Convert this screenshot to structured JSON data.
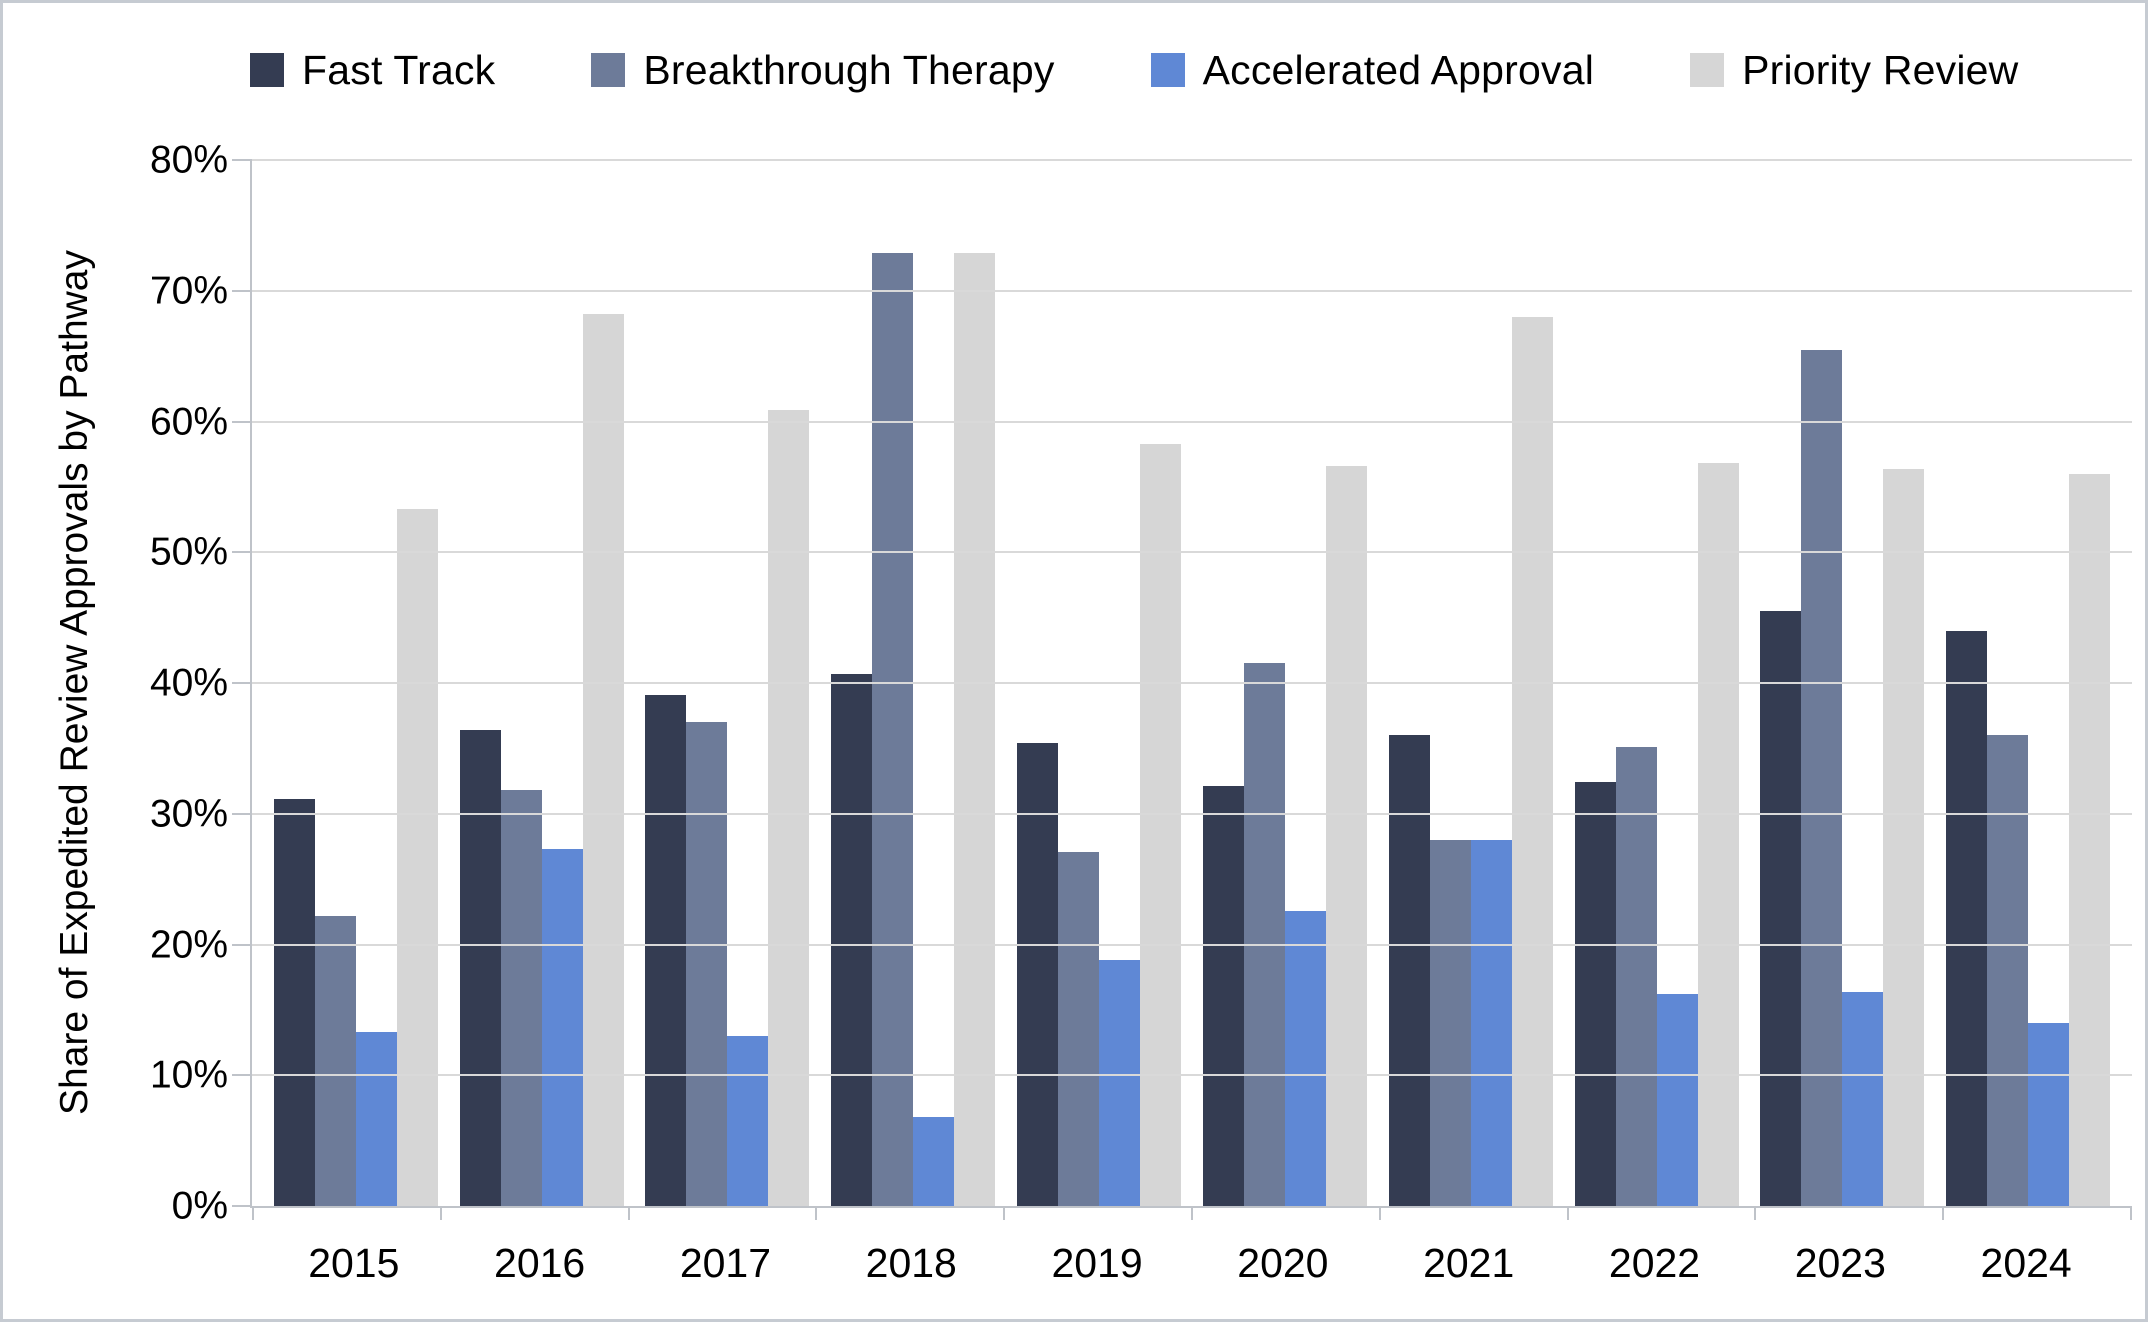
{
  "chart_data": {
    "type": "bar",
    "title": "",
    "xlabel": "",
    "ylabel": "Share of Expedited Review Approvals by Pathway",
    "categories": [
      "2015",
      "2016",
      "2017",
      "2018",
      "2019",
      "2020",
      "2021",
      "2022",
      "2023",
      "2024"
    ],
    "series": [
      {
        "name": "Fast Track",
        "color": "#343c52",
        "values": [
          31.1,
          36.4,
          39.1,
          40.7,
          35.4,
          32.1,
          36.0,
          32.4,
          45.5,
          44.0
        ]
      },
      {
        "name": "Breakthrough Therapy",
        "color": "#6d7b99",
        "values": [
          22.2,
          31.8,
          37.0,
          72.9,
          27.1,
          41.5,
          28.0,
          35.1,
          65.5,
          36.0
        ]
      },
      {
        "name": "Accelerated Approval",
        "color": "#5f88d5",
        "values": [
          13.3,
          27.3,
          13.0,
          6.8,
          18.8,
          22.6,
          28.0,
          16.2,
          16.4,
          14.0
        ]
      },
      {
        "name": "Priority Review",
        "color": "#d6d6d6",
        "values": [
          53.3,
          68.2,
          60.9,
          72.9,
          58.3,
          56.6,
          68.0,
          56.8,
          56.4,
          56.0
        ]
      }
    ],
    "ylim": [
      0,
      80
    ],
    "ytick_step": 10,
    "ytick_labels": [
      "0%",
      "10%",
      "20%",
      "30%",
      "40%",
      "50%",
      "60%",
      "70%",
      "80%"
    ],
    "grid": true,
    "legend_position": "top",
    "colors": {
      "gridline": "#d9d9d9",
      "axis_line": "#bfc3c9",
      "text": "#000000",
      "background": "#ffffff"
    }
  }
}
